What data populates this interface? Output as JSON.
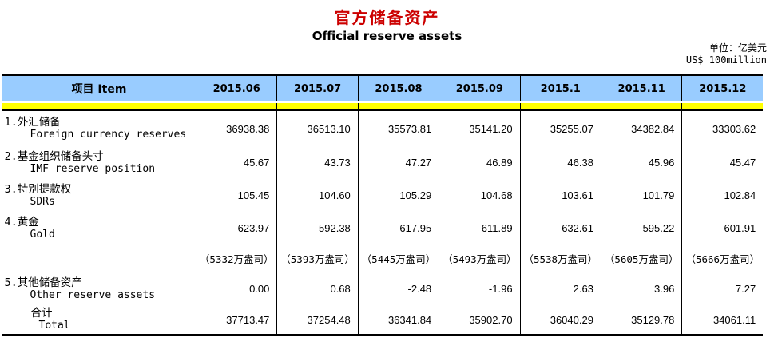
{
  "title": {
    "zh": "官方储备资产",
    "en": "Official reserve assets"
  },
  "unit": {
    "zh": "单位：亿美元",
    "en": "US$ 100million"
  },
  "colors": {
    "header_bg": "#99CCFF",
    "band_bg": "#FFFF00",
    "title_red": "#CC0000"
  },
  "table": {
    "item_header": "项目 Item",
    "columns": [
      "2015.06",
      "2015.07",
      "2015.08",
      "2015.09",
      "2015.1",
      "2015.11",
      "2015.12"
    ],
    "rows": [
      {
        "kind": "item",
        "zh": "1.外汇储备",
        "en": "Foreign currency reserves",
        "values": [
          "36938.38",
          "36513.10",
          "35573.81",
          "35141.20",
          "35255.07",
          "34382.84",
          "33303.62"
        ]
      },
      {
        "kind": "item",
        "zh": "2.基金组织储备头寸",
        "en": "IMF reserve position",
        "values": [
          "45.67",
          "43.73",
          "47.27",
          "46.89",
          "46.38",
          "45.96",
          "45.47"
        ]
      },
      {
        "kind": "item",
        "zh": "3.特别提款权",
        "en": "SDRs",
        "values": [
          "105.45",
          "104.60",
          "105.29",
          "104.68",
          "103.61",
          "101.79",
          "102.84"
        ]
      },
      {
        "kind": "item",
        "zh": "4.黄金",
        "en": "Gold",
        "values": [
          "623.97",
          "592.38",
          "617.95",
          "611.89",
          "632.61",
          "595.22",
          "601.91"
        ]
      },
      {
        "kind": "ounces",
        "zh": "",
        "en": "",
        "values": [
          "（5332万盎司）",
          "（5393万盎司）",
          "（5445万盎司）",
          "（5493万盎司）",
          "（5538万盎司）",
          "（5605万盎司）",
          "（5666万盎司）"
        ]
      },
      {
        "kind": "item",
        "zh": "5.其他储备资产",
        "en": "Other reserve assets",
        "values": [
          "0.00",
          "0.68",
          "-2.48",
          "-1.96",
          "2.63",
          "3.96",
          "7.27"
        ]
      },
      {
        "kind": "total",
        "zh": "合计",
        "en": "Total",
        "values": [
          "37713.47",
          "37254.48",
          "36341.84",
          "35902.70",
          "36040.29",
          "35129.78",
          "34061.11"
        ]
      }
    ]
  }
}
